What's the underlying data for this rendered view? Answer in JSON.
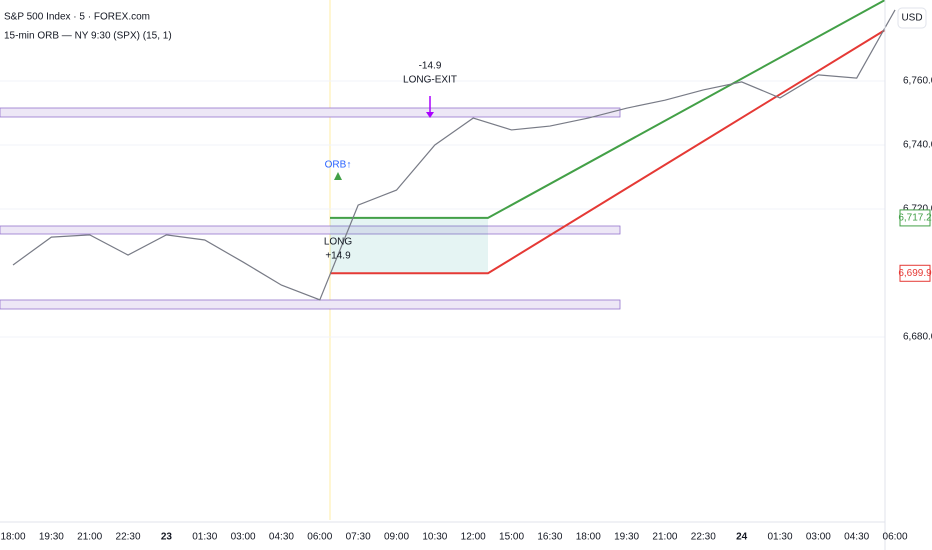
{
  "chart_data": {
    "type": "line",
    "title": "S&P 500 Index · 5 · FOREX.com",
    "subtitle": "15-min ORB — NY 9:30 (SPX) (15, 1)",
    "currency": "USD",
    "categories": [
      "18:00",
      "19:30",
      "21:00",
      "22:30",
      "23",
      "01:30",
      "03:00",
      "04:30",
      "06:00",
      "07:30",
      "09:00",
      "10:30",
      "12:00",
      "15:00",
      "16:30",
      "18:00",
      "19:30",
      "21:00",
      "22:30",
      "24",
      "01:30",
      "03:00",
      "04:30",
      "06:00"
    ],
    "series": [
      {
        "color": "#787b86",
        "values": [
          6702.5,
          6711.2,
          6711.9,
          6705.6,
          6711.9,
          6710.3,
          6703.4,
          6696.2,
          6691.6,
          6721.2,
          6725.9,
          6740.0,
          6748.4,
          6744.7,
          6745.9,
          6748.4,
          6751.5,
          6754.0,
          6757.2,
          6759.7,
          6754.7,
          6761.9,
          6760.9,
          6782.2
        ]
      }
    ],
    "ylim": [
      6622.8,
      6785.3
    ],
    "yticks": [
      {
        "value": 6680,
        "label": "6,680.0"
      },
      {
        "value": 6720,
        "label": "6,720.0"
      },
      {
        "value": 6740,
        "label": "6,740.0"
      },
      {
        "value": 6760,
        "label": "6,760.0"
      }
    ],
    "grid": true,
    "price_labels": [
      {
        "value": 6717.2,
        "label": "6,717.2",
        "color": "#43a047"
      },
      {
        "value": 6699.9,
        "label": "6,699.9",
        "color": "#e53935"
      }
    ],
    "annotations": [
      "ORB↑",
      "LONG",
      "+14.9",
      "-14.9",
      "LONG-EXIT"
    ]
  }
}
